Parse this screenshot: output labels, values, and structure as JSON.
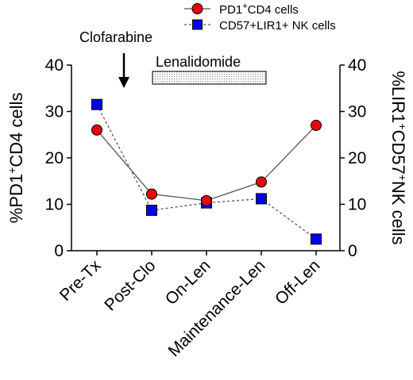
{
  "chart_data": {
    "type": "line",
    "categories": [
      "Pre-Tx",
      "Post-Clo",
      "On-Len",
      "Maintenance-Len",
      "Off-Len"
    ],
    "series": [
      {
        "name": "PD1+CD4 cells",
        "legend_main": "PD1",
        "legend_sup": "+",
        "legend_rest": "CD4 cells",
        "axis": "left",
        "marker": "circle",
        "line_style": "solid",
        "color": "#e8000b",
        "line_color": "#555555",
        "values": [
          26,
          12.2,
          10.8,
          14.8,
          27
        ]
      },
      {
        "name": "CD57+LIR1+ NK cells",
        "legend_main": "CD57+LIR1+ NK cells",
        "axis": "right",
        "marker": "square",
        "line_style": "dashed",
        "color": "#0000ee",
        "line_color": "#555555",
        "values": [
          31.5,
          8.7,
          10.3,
          11.2,
          2.5
        ]
      }
    ],
    "y_left": {
      "min": 0,
      "max": 40,
      "ticks": [
        0,
        10,
        20,
        30,
        40
      ],
      "label": {
        "a": "%PD1",
        "sup": "+",
        "b": "CD4 cells"
      }
    },
    "y_right": {
      "min": 0,
      "max": 40,
      "ticks": [
        0,
        10,
        20,
        30,
        40
      ],
      "label": {
        "a": "%LIR1",
        "sup1": "+",
        "b": "CD57",
        "sup2": "+",
        "c": "NK cells"
      }
    },
    "annotations": {
      "arrow_label": "Clofarabine",
      "bar_label": "Lenalidomide"
    },
    "grid": false,
    "legend_position": "top-right"
  }
}
